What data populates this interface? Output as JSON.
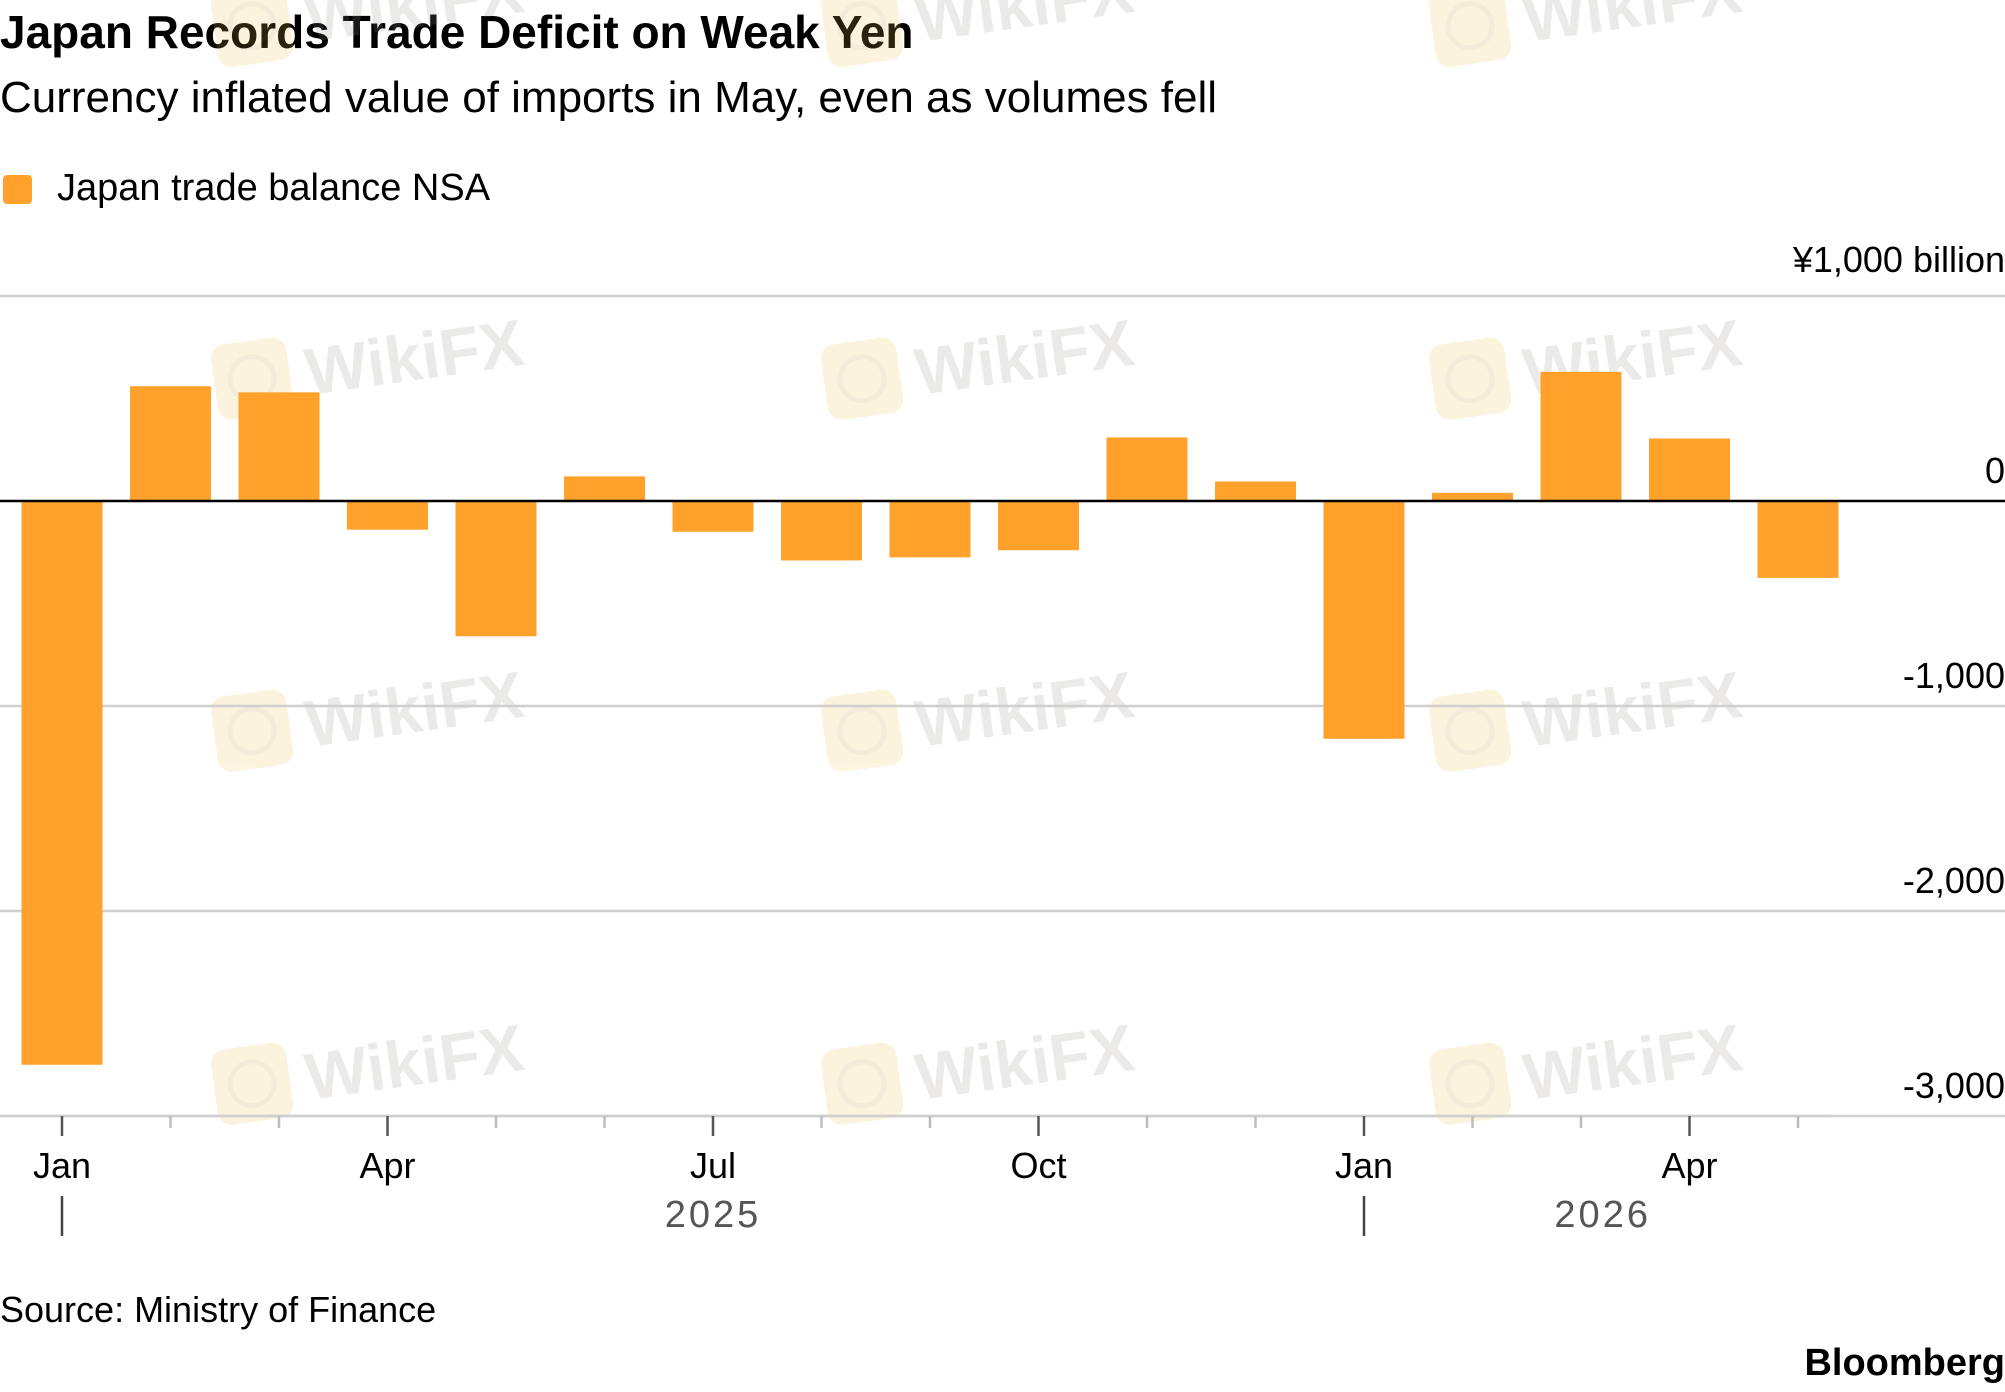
{
  "watermark": {
    "text": "WikiFX",
    "icon": "wikifx-logo-icon"
  },
  "chart_data": {
    "type": "bar",
    "title": "Japan Records Trade Deficit on Weak Yen",
    "subtitle": "Currency inflated value of imports in May, even as volumes fell",
    "legend": {
      "label": "Japan trade balance NSA",
      "placement": "top-left"
    },
    "unit_label": "¥1,000 billion",
    "ylim": [
      -3000,
      1000
    ],
    "yticks": [
      {
        "value": 1000,
        "label": ""
      },
      {
        "value": 0,
        "label": "0"
      },
      {
        "value": -1000,
        "label": "-1,000"
      },
      {
        "value": -2000,
        "label": "-2,000"
      },
      {
        "value": -3000,
        "label": "-3,000"
      }
    ],
    "grid": true,
    "categories": [
      "2025-01",
      "2025-02",
      "2025-03",
      "2025-04",
      "2025-05",
      "2025-06",
      "2025-07",
      "2025-08",
      "2025-09",
      "2025-10",
      "2025-11",
      "2025-12",
      "2026-01",
      "2026-02",
      "2026-03",
      "2026-04",
      "2026-05"
    ],
    "series": [
      {
        "color": "#ffa12b",
        "values": [
          -2750,
          560,
          530,
          -140,
          -660,
          120,
          -150,
          -290,
          -275,
          -240,
          310,
          95,
          -1160,
          40,
          630,
          305,
          -375
        ]
      }
    ],
    "xticks": [
      {
        "index": 0,
        "label": "Jan"
      },
      {
        "index": 3,
        "label": "Apr"
      },
      {
        "index": 6,
        "label": "Jul"
      },
      {
        "index": 9,
        "label": "Oct"
      },
      {
        "index": 12,
        "label": "Jan"
      },
      {
        "index": 15,
        "label": "Apr"
      }
    ],
    "year_labels": [
      {
        "label": "2025",
        "index": 6
      },
      {
        "label": "2026",
        "index": 14.2
      }
    ],
    "year_dividers": [
      0,
      12
    ],
    "source": "Source: Ministry of Finance",
    "brand": "Bloomberg"
  }
}
